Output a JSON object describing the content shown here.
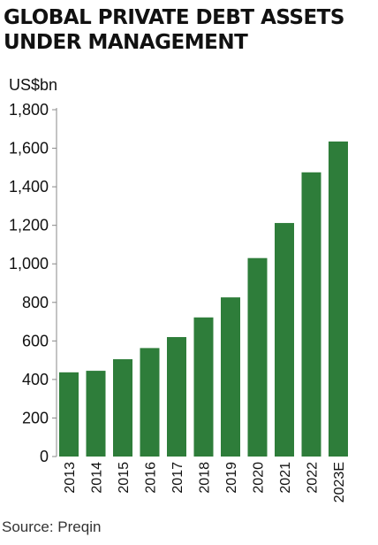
{
  "title_line1": "GLOBAL PRIVATE DEBT ASSETS",
  "title_line2": "UNDER MANAGEMENT",
  "unit_label": "US$bn",
  "source": "Source: Preqin",
  "colors": {
    "bar": "#2e7d3a",
    "axis": "#888888"
  },
  "chart_data": {
    "type": "bar",
    "title": "GLOBAL PRIVATE DEBT ASSETS UNDER MANAGEMENT",
    "ylabel": "US$bn",
    "xlabel": "",
    "categories": [
      "2013",
      "2014",
      "2015",
      "2016",
      "2017",
      "2018",
      "2019",
      "2020",
      "2021",
      "2022",
      "2023E"
    ],
    "values": [
      437,
      445,
      505,
      563,
      620,
      722,
      826,
      1030,
      1212,
      1475,
      1635
    ],
    "ylim": [
      0,
      1800
    ],
    "yticks": [
      0,
      200,
      400,
      600,
      800,
      1000,
      1200,
      1400,
      1600,
      1800
    ],
    "ytick_labels": [
      "0",
      "200",
      "400",
      "600",
      "800",
      "1,000",
      "1,200",
      "1,400",
      "1,600",
      "1,800"
    ],
    "grid": false,
    "legend": "none"
  }
}
